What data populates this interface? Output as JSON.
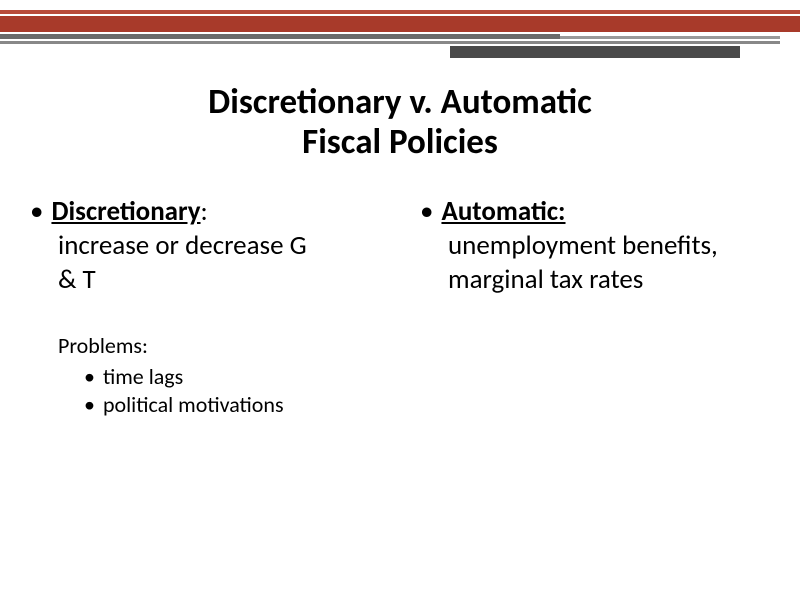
{
  "header": {
    "red_stripe_color": "#a83a2a",
    "grey_stripe_color": "#6a6a6a"
  },
  "title": {
    "line1": "Discretionary v. Automatic",
    "line2": "Fiscal Policies"
  },
  "left": {
    "bullet": "•",
    "heading": "Discretionary",
    "heading_suffix": ":",
    "desc_line1": "increase or decrease G",
    "desc_line2": "& T",
    "problems_title": "Problems:",
    "problems": [
      "time lags",
      "political motivations"
    ]
  },
  "right": {
    "bullet": "•",
    "heading": "Automatic:",
    "desc_line1": "unemployment benefits,",
    "desc_line2": "marginal tax rates"
  }
}
